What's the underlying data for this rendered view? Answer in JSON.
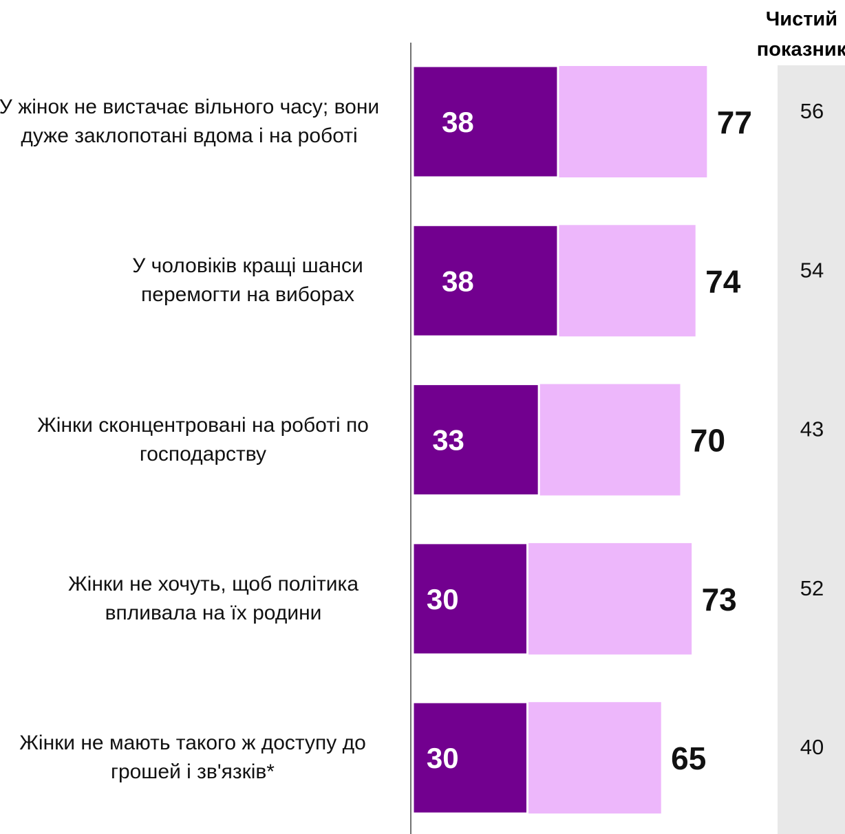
{
  "chart_data": {
    "type": "bar",
    "net_title": "Чистий показник",
    "categories": [
      "У жінок не вистачає вільного часу; вони дуже заклопотані вдома і на роботі",
      "У чоловіків кращі шанси перемогти на виборах",
      "Жінки сконцентровані на роботі по господарству",
      "Жінки не хочуть, щоб політика впливала на їх родини",
      "Жінки не мають такого ж доступу до грошей і зв'язків*"
    ],
    "values": [
      38,
      38,
      33,
      30,
      30
    ],
    "totals": [
      77,
      74,
      70,
      73,
      65
    ],
    "net": [
      56,
      54,
      43,
      52,
      40
    ],
    "color": "#72008f",
    "total_color": "#edb7fb",
    "net_background": "#e8e8e8"
  }
}
